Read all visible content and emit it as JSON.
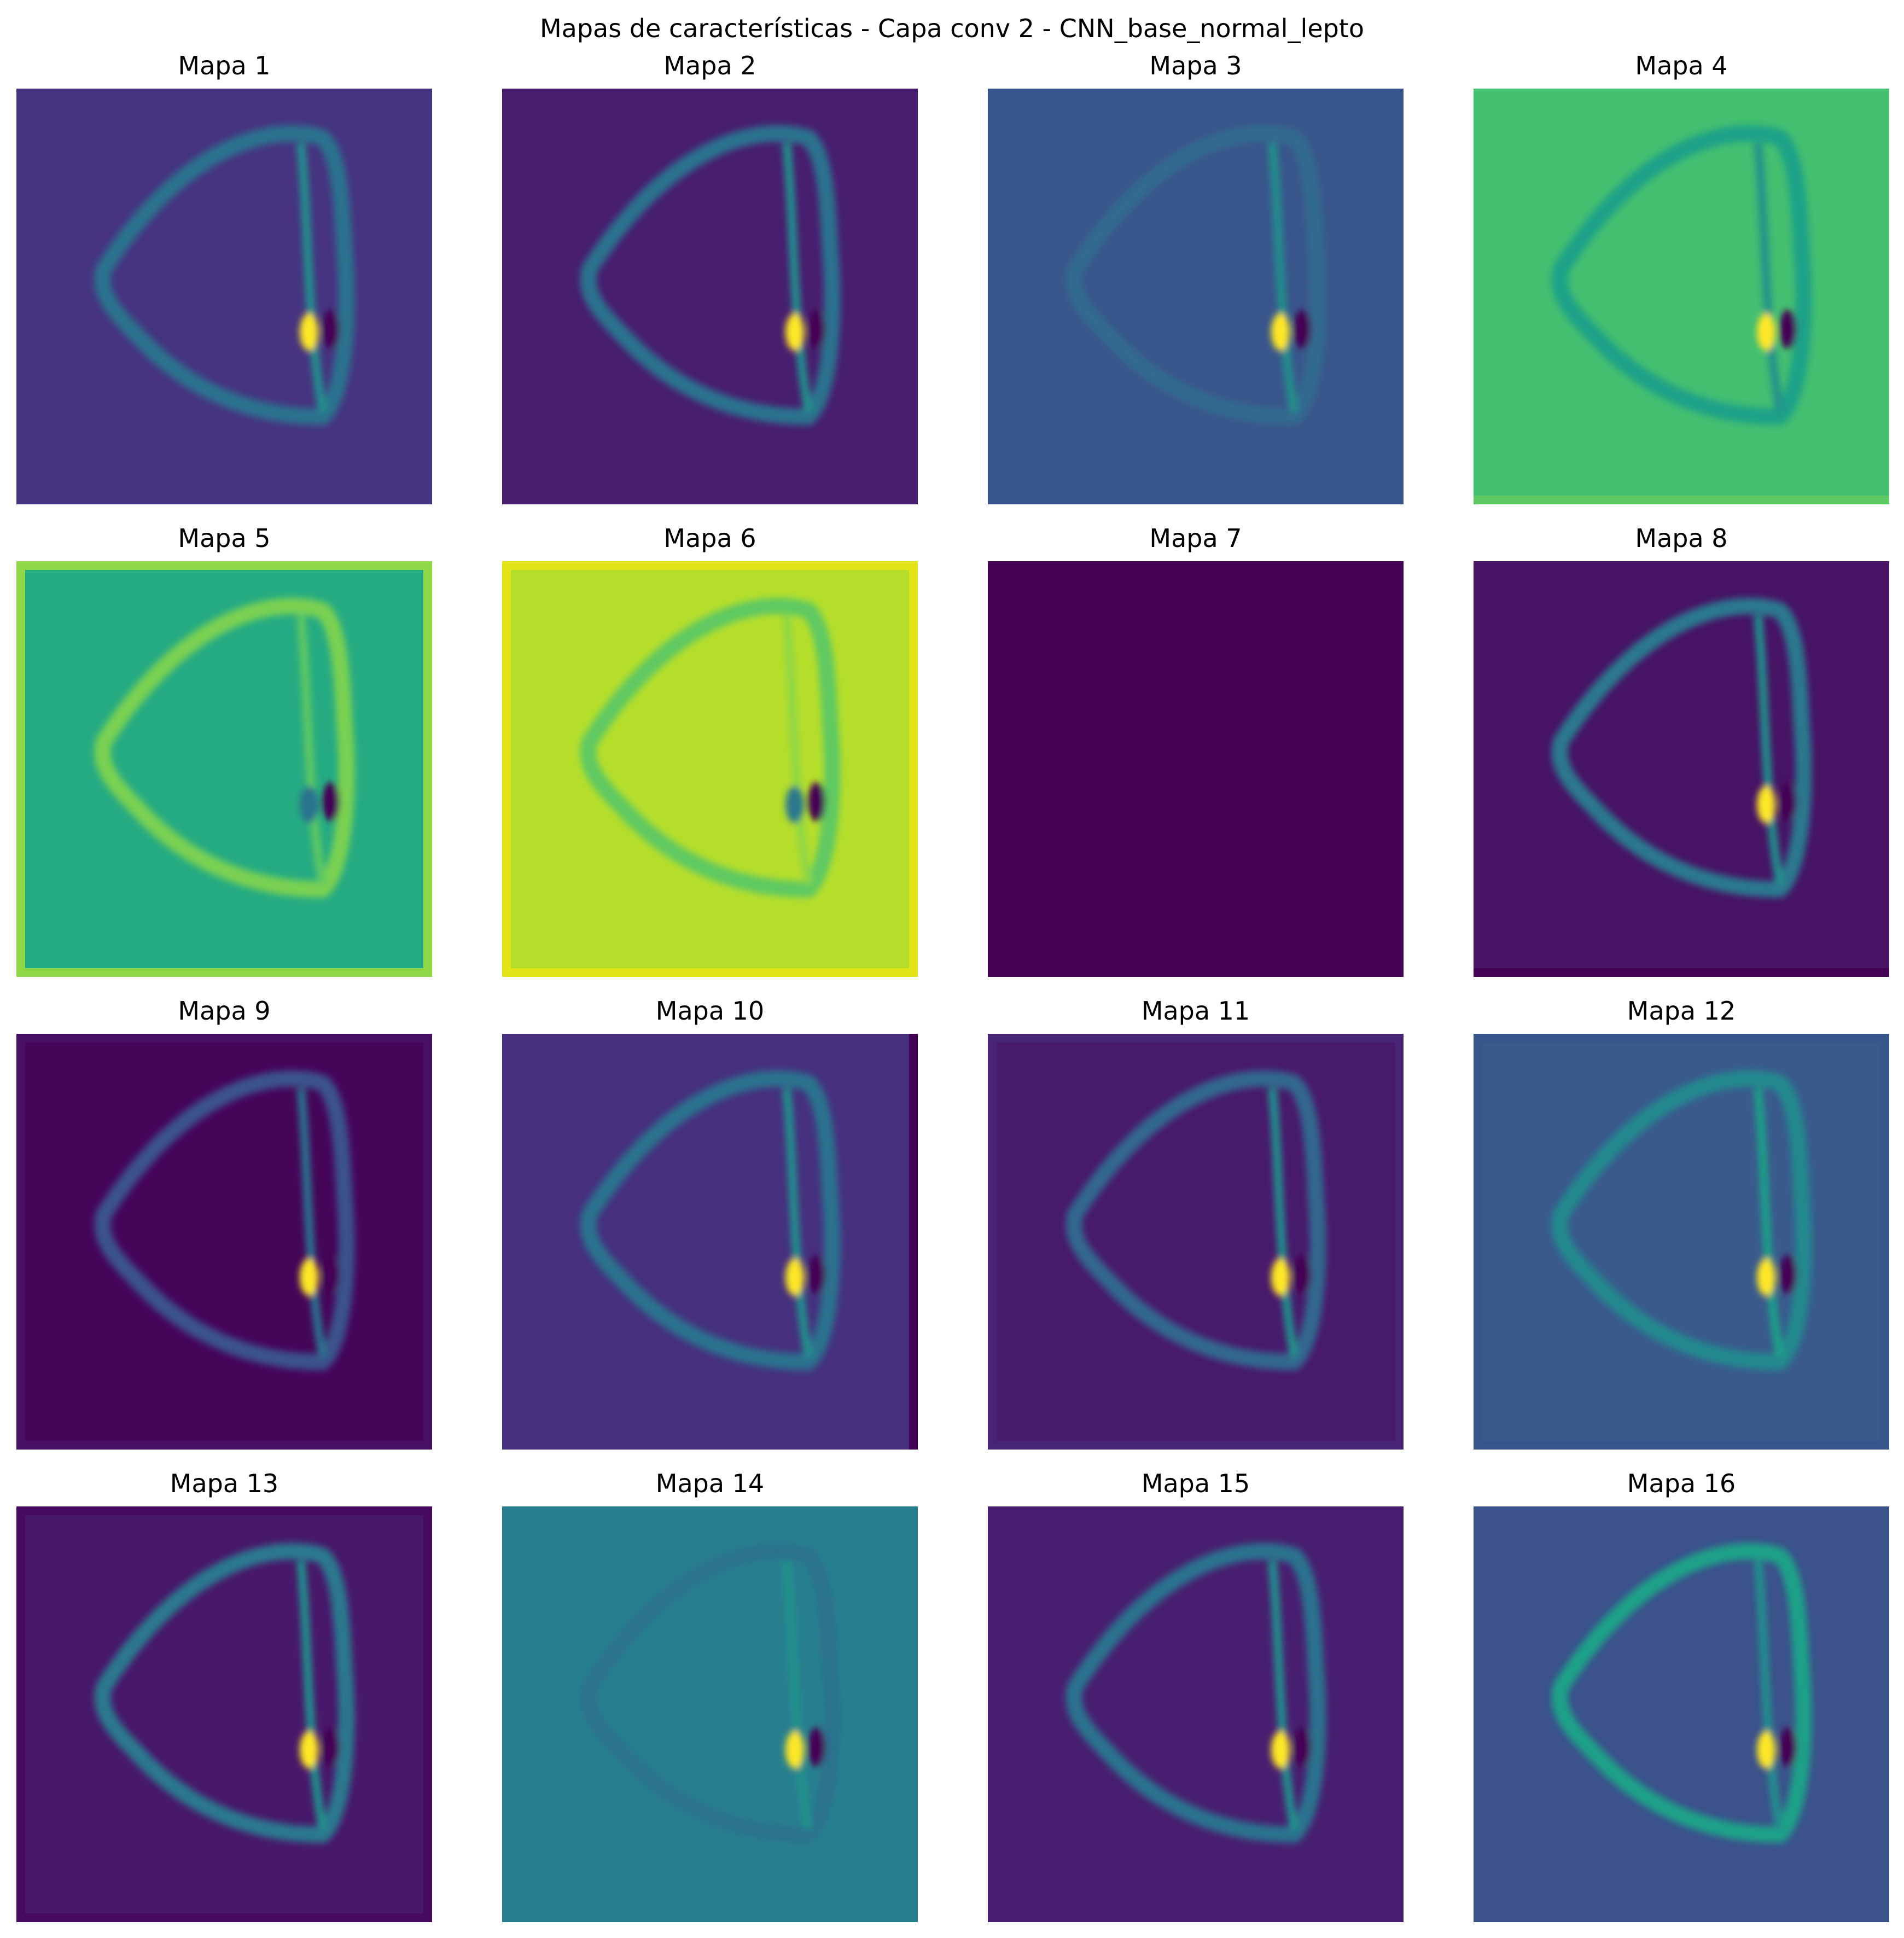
{
  "figure": {
    "title": "Mapas de características - Capa conv 2 - CNN_base_normal_lepto",
    "colormap": "viridis",
    "panels": [
      {
        "title": "Mapa 1",
        "background": "#463480",
        "ring": "#2c728e",
        "ring_inner": "#21918c",
        "hot": "#fde725",
        "dark": "#440154",
        "border": "none",
        "border_color": "#463480"
      },
      {
        "title": "Mapa 2",
        "background": "#481e6f",
        "ring": "#2c728e",
        "ring_inner": "#21918c",
        "hot": "#fde725",
        "dark": "#440154",
        "border": "none",
        "border_color": "#481e6f"
      },
      {
        "title": "Mapa 3",
        "background": "#39568c",
        "ring": "#306a8e",
        "ring_inner": "#21918c",
        "hot": "#fde725",
        "dark": "#440154",
        "border": "none",
        "border_color": "#39568c"
      },
      {
        "title": "Mapa 4",
        "background": "#44bf70",
        "ring": "#1fa188",
        "ring_inner": "#21918c",
        "hot": "#fde725",
        "dark": "#440154",
        "border": "bottom",
        "border_color": "#5ec962"
      },
      {
        "title": "Mapa 5",
        "background": "#25ab82",
        "ring": "#7ad151",
        "ring_inner": "#5ec962",
        "hot": "#2c728e",
        "dark": "#440154",
        "border": "sides",
        "border_color": "#8fd744"
      },
      {
        "title": "Mapa 6",
        "background": "#b5de2b",
        "ring": "#5ec962",
        "ring_inner": "#8fd744",
        "hot": "#2a788e",
        "dark": "#440154",
        "border": "sides",
        "border_color": "#e3e418"
      },
      {
        "title": "Mapa 7",
        "background": "#440154",
        "ring": "#440154",
        "ring_inner": "#440154",
        "hot": "#440154",
        "dark": "#440154",
        "border": "none",
        "border_color": "#440154"
      },
      {
        "title": "Mapa 8",
        "background": "#471365",
        "ring": "#2a788e",
        "ring_inner": "#21918c",
        "hot": "#fde725",
        "dark": "#440154",
        "border": "bottom",
        "border_color": "#440154"
      },
      {
        "title": "Mapa 9",
        "background": "#450559",
        "ring": "#3b528b",
        "ring_inner": "#2c728e",
        "hot": "#fde725",
        "dark": "#440154",
        "border": "frame",
        "border_color": "#471063"
      },
      {
        "title": "Mapa 10",
        "background": "#46307e",
        "ring": "#2c728e",
        "ring_inner": "#21918c",
        "hot": "#fde725",
        "dark": "#440154",
        "border": "right",
        "border_color": "#440154"
      },
      {
        "title": "Mapa 11",
        "background": "#481a6c",
        "ring": "#31688e",
        "ring_inner": "#21918c",
        "hot": "#fde725",
        "dark": "#440154",
        "border": "frame",
        "border_color": "#482475"
      },
      {
        "title": "Mapa 12",
        "background": "#3a5a8c",
        "ring": "#23898e",
        "ring_inner": "#1fa188",
        "hot": "#fde725",
        "dark": "#440154",
        "border": "frame",
        "border_color": "#39568c"
      },
      {
        "title": "Mapa 13",
        "background": "#48186a",
        "ring": "#2a788e",
        "ring_inner": "#21918c",
        "hot": "#fde725",
        "dark": "#440154",
        "border": "frame",
        "border_color": "#460b5e"
      },
      {
        "title": "Mapa 14",
        "background": "#277f8e",
        "ring": "#2c728e",
        "ring_inner": "#21918c",
        "hot": "#fde725",
        "dark": "#440154",
        "border": "none",
        "border_color": "#277f8e"
      },
      {
        "title": "Mapa 15",
        "background": "#481f70",
        "ring": "#2c728e",
        "ring_inner": "#21918c",
        "hot": "#fde725",
        "dark": "#440154",
        "border": "none",
        "border_color": "#481f70"
      },
      {
        "title": "Mapa 16",
        "background": "#3b528b",
        "ring": "#1fa188",
        "ring_inner": "#21918c",
        "hot": "#fde725",
        "dark": "#440154",
        "border": "none",
        "border_color": "#3b528b"
      }
    ]
  }
}
